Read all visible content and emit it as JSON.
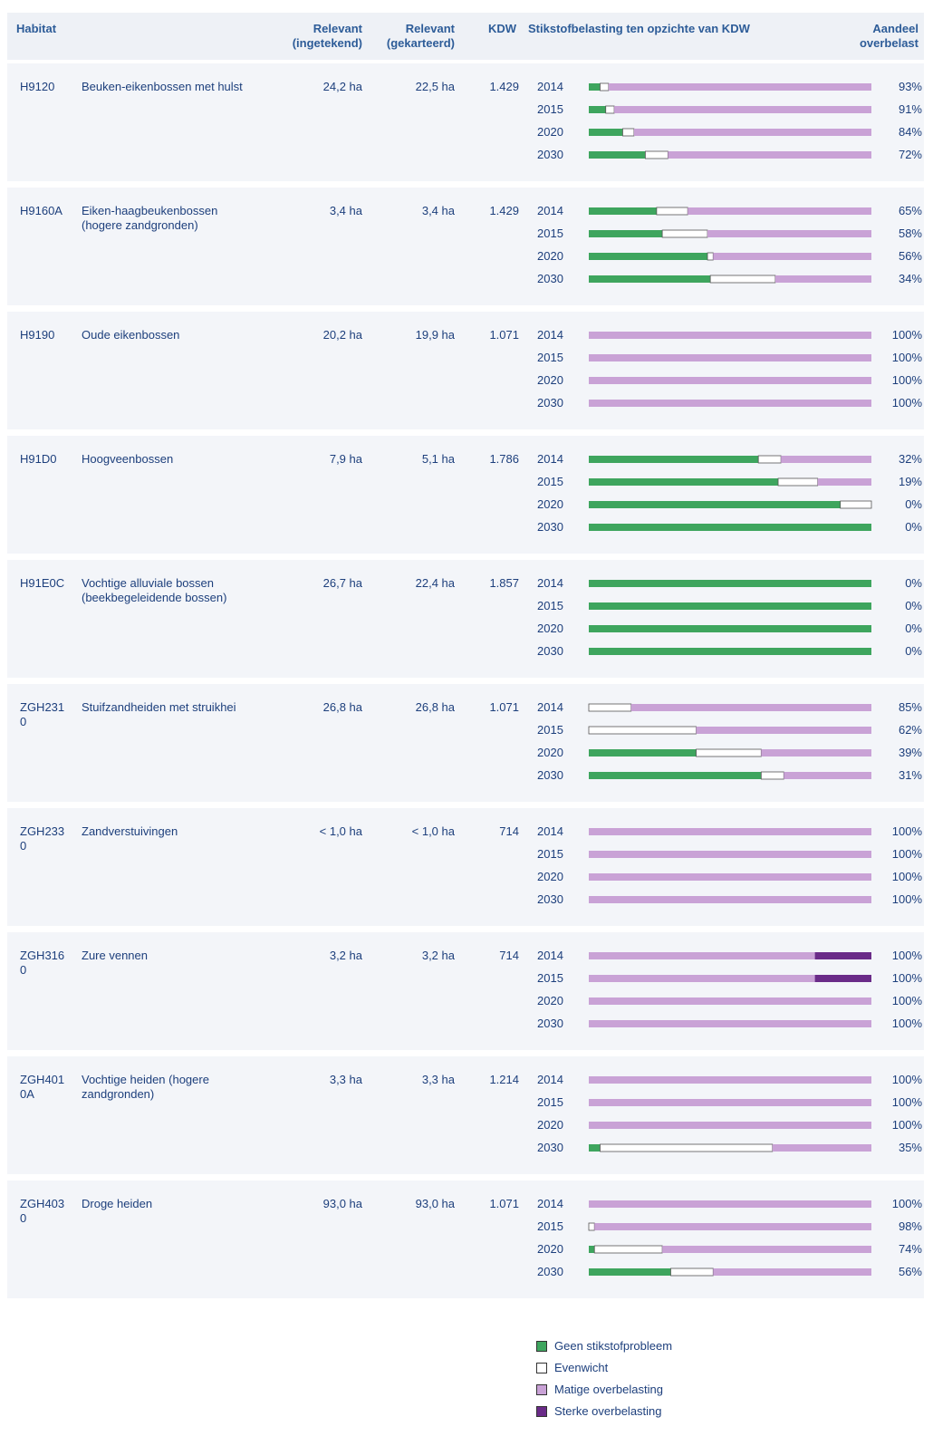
{
  "header": {
    "habitat": "Habitat",
    "relevant_ingetekend": "Relevant (ingetekend)",
    "relevant_gekarteerd": "Relevant (gekarteerd)",
    "kdw": "KDW",
    "stikstof": "Stikstofbelasting ten opzichte van KDW",
    "aandeel": "Aandeel overbelast"
  },
  "legend": [
    {
      "name": "Geen stikstofprobleem",
      "color": "#3ea55e"
    },
    {
      "name": "Evenwicht",
      "color": "#ffffff"
    },
    {
      "name": "Matige overbelasting",
      "color": "#c9a2d6"
    },
    {
      "name": "Sterke overbelasting",
      "color": "#6a2b88"
    }
  ],
  "table": {
    "rows": [
      {
        "code": "H9120",
        "name": "Beuken-eikenbossen met hulst",
        "ingetekend": "24,2 ha",
        "gekarteerd": "22,5 ha",
        "kdw": "1.429",
        "years": [
          {
            "year": "2014",
            "values": [
              4,
              3,
              93,
              0
            ],
            "share": "93%"
          },
          {
            "year": "2015",
            "values": [
              6,
              3,
              91,
              0
            ],
            "share": "91%"
          },
          {
            "year": "2020",
            "values": [
              12,
              4,
              84,
              0
            ],
            "share": "84%"
          },
          {
            "year": "2030",
            "values": [
              20,
              8,
              72,
              0
            ],
            "share": "72%"
          }
        ]
      },
      {
        "code": "H9160A",
        "name": "Eiken-haagbeukenbossen (hogere zandgronden)",
        "ingetekend": "3,4 ha",
        "gekarteerd": "3,4 ha",
        "kdw": "1.429",
        "years": [
          {
            "year": "2014",
            "values": [
              24,
              11,
              65,
              0
            ],
            "share": "65%"
          },
          {
            "year": "2015",
            "values": [
              26,
              16,
              58,
              0
            ],
            "share": "58%"
          },
          {
            "year": "2020",
            "values": [
              42,
              2,
              56,
              0
            ],
            "share": "56%"
          },
          {
            "year": "2030",
            "values": [
              43,
              23,
              34,
              0
            ],
            "share": "34%"
          }
        ]
      },
      {
        "code": "H9190",
        "name": "Oude eikenbossen",
        "ingetekend": "20,2 ha",
        "gekarteerd": "19,9 ha",
        "kdw": "1.071",
        "years": [
          {
            "year": "2014",
            "values": [
              0,
              0,
              100,
              0
            ],
            "share": "100%"
          },
          {
            "year": "2015",
            "values": [
              0,
              0,
              100,
              0
            ],
            "share": "100%"
          },
          {
            "year": "2020",
            "values": [
              0,
              0,
              100,
              0
            ],
            "share": "100%"
          },
          {
            "year": "2030",
            "values": [
              0,
              0,
              100,
              0
            ],
            "share": "100%"
          }
        ]
      },
      {
        "code": "H91D0",
        "name": "Hoogveenbossen",
        "ingetekend": "7,9 ha",
        "gekarteerd": "5,1 ha",
        "kdw": "1.786",
        "years": [
          {
            "year": "2014",
            "values": [
              60,
              8,
              32,
              0
            ],
            "share": "32%"
          },
          {
            "year": "2015",
            "values": [
              67,
              14,
              19,
              0
            ],
            "share": "19%"
          },
          {
            "year": "2020",
            "values": [
              89,
              11,
              0,
              0
            ],
            "share": "0%"
          },
          {
            "year": "2030",
            "values": [
              100,
              0,
              0,
              0
            ],
            "share": "0%"
          }
        ]
      },
      {
        "code": "H91E0C",
        "name": "Vochtige alluviale bossen (beekbegeleidende bossen)",
        "ingetekend": "26,7 ha",
        "gekarteerd": "22,4 ha",
        "kdw": "1.857",
        "years": [
          {
            "year": "2014",
            "values": [
              100,
              0,
              0,
              0
            ],
            "share": "0%"
          },
          {
            "year": "2015",
            "values": [
              100,
              0,
              0,
              0
            ],
            "share": "0%"
          },
          {
            "year": "2020",
            "values": [
              100,
              0,
              0,
              0
            ],
            "share": "0%"
          },
          {
            "year": "2030",
            "values": [
              100,
              0,
              0,
              0
            ],
            "share": "0%"
          }
        ]
      },
      {
        "code": "ZGH2310",
        "name": "Stuifzandheiden met struikhei",
        "ingetekend": "26,8 ha",
        "gekarteerd": "26,8 ha",
        "kdw": "1.071",
        "years": [
          {
            "year": "2014",
            "values": [
              0,
              15,
              85,
              0
            ],
            "share": "85%"
          },
          {
            "year": "2015",
            "values": [
              0,
              38,
              62,
              0
            ],
            "share": "62%"
          },
          {
            "year": "2020",
            "values": [
              38,
              23,
              39,
              0
            ],
            "share": "39%"
          },
          {
            "year": "2030",
            "values": [
              61,
              8,
              31,
              0
            ],
            "share": "31%"
          }
        ]
      },
      {
        "code": "ZGH2330",
        "name": "Zandverstuivingen",
        "ingetekend": "< 1,0 ha",
        "gekarteerd": "< 1,0 ha",
        "kdw": "714",
        "years": [
          {
            "year": "2014",
            "values": [
              0,
              0,
              100,
              0
            ],
            "share": "100%"
          },
          {
            "year": "2015",
            "values": [
              0,
              0,
              100,
              0
            ],
            "share": "100%"
          },
          {
            "year": "2020",
            "values": [
              0,
              0,
              100,
              0
            ],
            "share": "100%"
          },
          {
            "year": "2030",
            "values": [
              0,
              0,
              100,
              0
            ],
            "share": "100%"
          }
        ]
      },
      {
        "code": "ZGH3160",
        "name": "Zure vennen",
        "ingetekend": "3,2 ha",
        "gekarteerd": "3,2 ha",
        "kdw": "714",
        "years": [
          {
            "year": "2014",
            "values": [
              0,
              0,
              80,
              20
            ],
            "share": "100%"
          },
          {
            "year": "2015",
            "values": [
              0,
              0,
              80,
              20
            ],
            "share": "100%"
          },
          {
            "year": "2020",
            "values": [
              0,
              0,
              100,
              0
            ],
            "share": "100%"
          },
          {
            "year": "2030",
            "values": [
              0,
              0,
              100,
              0
            ],
            "share": "100%"
          }
        ]
      },
      {
        "code": "ZGH4010A",
        "name": "Vochtige heiden (hogere zandgronden)",
        "ingetekend": "3,3 ha",
        "gekarteerd": "3,3 ha",
        "kdw": "1.214",
        "years": [
          {
            "year": "2014",
            "values": [
              0,
              0,
              100,
              0
            ],
            "share": "100%"
          },
          {
            "year": "2015",
            "values": [
              0,
              0,
              100,
              0
            ],
            "share": "100%"
          },
          {
            "year": "2020",
            "values": [
              0,
              0,
              100,
              0
            ],
            "share": "100%"
          },
          {
            "year": "2030",
            "values": [
              4,
              61,
              35,
              0
            ],
            "share": "35%"
          }
        ]
      },
      {
        "code": "ZGH4030",
        "name": "Droge heiden",
        "ingetekend": "93,0 ha",
        "gekarteerd": "93,0 ha",
        "kdw": "1.071",
        "years": [
          {
            "year": "2014",
            "values": [
              0,
              0,
              100,
              0
            ],
            "share": "100%"
          },
          {
            "year": "2015",
            "values": [
              0,
              2,
              98,
              0
            ],
            "share": "98%"
          },
          {
            "year": "2020",
            "values": [
              2,
              24,
              74,
              0
            ],
            "share": "74%"
          },
          {
            "year": "2030",
            "values": [
              29,
              15,
              56,
              0
            ],
            "share": "56%"
          }
        ]
      }
    ]
  }
}
